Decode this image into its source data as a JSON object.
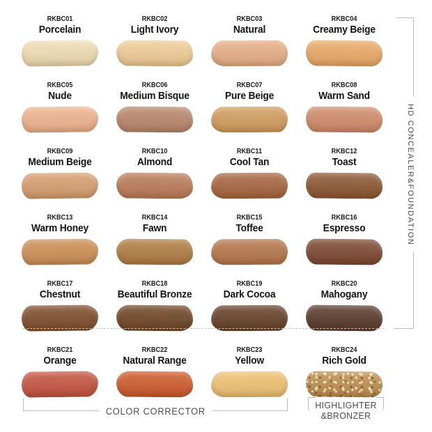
{
  "labels": {
    "right_group": "HD CONCEALER&FOUNDATION",
    "color_corrector": "COLOR CORRECTOR",
    "highlighter_line1": "HIGHLIGHTER",
    "highlighter_line2": "&BRONZER"
  },
  "colors": {
    "bracket_line": "#bdbdbd",
    "label_text": "#4c4c4c",
    "shade_text": "#141414",
    "background": "#ffffff"
  },
  "swatches": [
    {
      "code": "RKBC01",
      "name": "Porcelain",
      "color": "#f0dcb2"
    },
    {
      "code": "RKBC02",
      "name": "Light Ivory",
      "color": "#efcb95"
    },
    {
      "code": "RKBC03",
      "name": "Natural",
      "color": "#e7ae85"
    },
    {
      "code": "RKBC04",
      "name": "Creamy Beige",
      "color": "#e9a967"
    },
    {
      "code": "RKBC05",
      "name": "Nude",
      "color": "#efb28d"
    },
    {
      "code": "RKBC06",
      "name": "Medium Bisque",
      "color": "#b8866a"
    },
    {
      "code": "RKBC07",
      "name": "Pure Beige",
      "color": "#d19c5e"
    },
    {
      "code": "RKBC08",
      "name": "Warm Sand",
      "color": "#d08b6b"
    },
    {
      "code": "RKBC09",
      "name": "Medium Beige",
      "color": "#d79e6f"
    },
    {
      "code": "RKBC10",
      "name": "Almond",
      "color": "#ba7b58"
    },
    {
      "code": "RKBC11",
      "name": "Cool Tan",
      "color": "#a6653f"
    },
    {
      "code": "RKBC12",
      "name": "Toast",
      "color": "#8b5733"
    },
    {
      "code": "RKBC13",
      "name": "Warm Honey",
      "color": "#cc8f55"
    },
    {
      "code": "RKBC14",
      "name": "Fawn",
      "color": "#b07c43"
    },
    {
      "code": "RKBC15",
      "name": "Toffee",
      "color": "#b5764a"
    },
    {
      "code": "RKBC16",
      "name": "Espresso",
      "color": "#7c4732"
    },
    {
      "code": "RKBC17",
      "name": "Chestnut",
      "color": "#7e4d2b"
    },
    {
      "code": "RKBC18",
      "name": "Beautiful Bronze",
      "color": "#6f4526"
    },
    {
      "code": "RKBC19",
      "name": "Dark Cocoa",
      "color": "#654029"
    },
    {
      "code": "RKBC20",
      "name": "Mahogany",
      "color": "#58392b"
    },
    {
      "code": "RKBC21",
      "name": "Orange",
      "color": "#c45340"
    },
    {
      "code": "RKBC22",
      "name": "Natural Range",
      "color": "#cd5a2b"
    },
    {
      "code": "RKBC23",
      "name": "Yellow",
      "color": "#eec172"
    },
    {
      "code": "RKBC24",
      "name": "Rich Gold",
      "color": "#be8e51"
    }
  ]
}
